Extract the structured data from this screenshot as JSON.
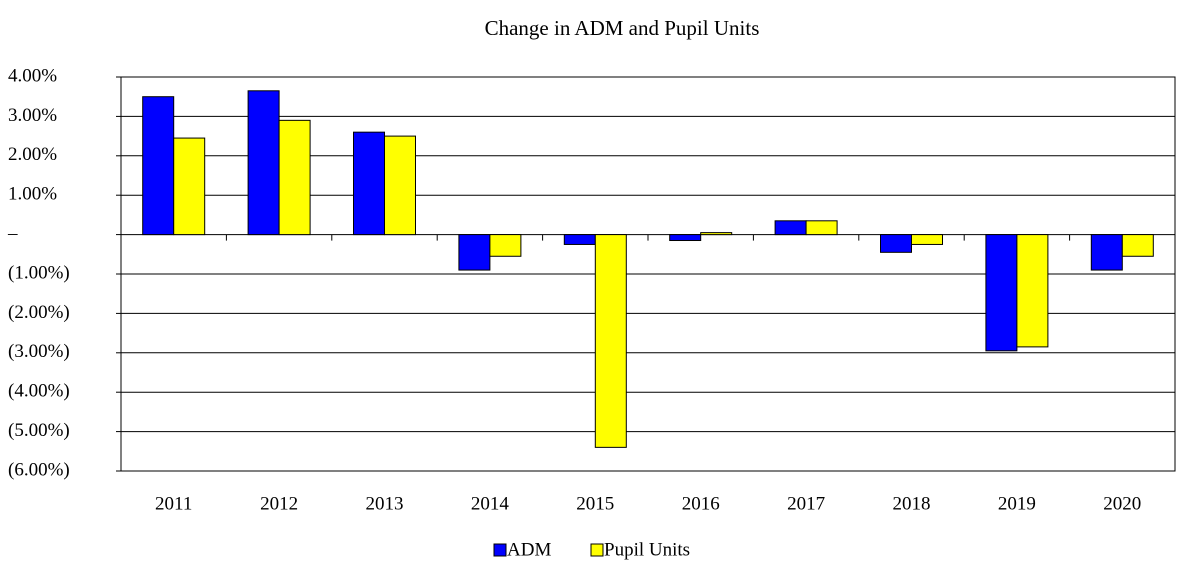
{
  "chart_data": {
    "type": "bar",
    "title": "Change in  ADM and Pupil Units",
    "categories": [
      "2011",
      "2012",
      "2013",
      "2014",
      "2015",
      "2016",
      "2017",
      "2018",
      "2019",
      "2020"
    ],
    "series": [
      {
        "name": "ADM",
        "color": "#0000ff",
        "values": [
          3.5,
          3.65,
          2.6,
          -0.9,
          -0.25,
          -0.15,
          0.35,
          -0.45,
          -2.95,
          -0.9
        ]
      },
      {
        "name": "Pupil Units",
        "color": "#ffff00",
        "values": [
          2.45,
          2.9,
          2.5,
          -0.55,
          -5.4,
          0.05,
          0.35,
          -0.25,
          -2.85,
          -0.55
        ]
      }
    ],
    "ylim": [
      -6,
      4
    ],
    "yticks": [
      {
        "value": 4,
        "label": "4.00%"
      },
      {
        "value": 3,
        "label": "3.00%"
      },
      {
        "value": 2,
        "label": "2.00%"
      },
      {
        "value": 1,
        "label": "1.00%"
      },
      {
        "value": 0,
        "label": "–"
      },
      {
        "value": -1,
        "label": "(1.00%)"
      },
      {
        "value": -2,
        "label": "(2.00%)"
      },
      {
        "value": -3,
        "label": "(3.00%)"
      },
      {
        "value": -4,
        "label": "(4.00%)"
      },
      {
        "value": -5,
        "label": "(5.00%)"
      },
      {
        "value": -6,
        "label": "(6.00%)"
      }
    ],
    "grid": true,
    "legend": "bottom"
  }
}
